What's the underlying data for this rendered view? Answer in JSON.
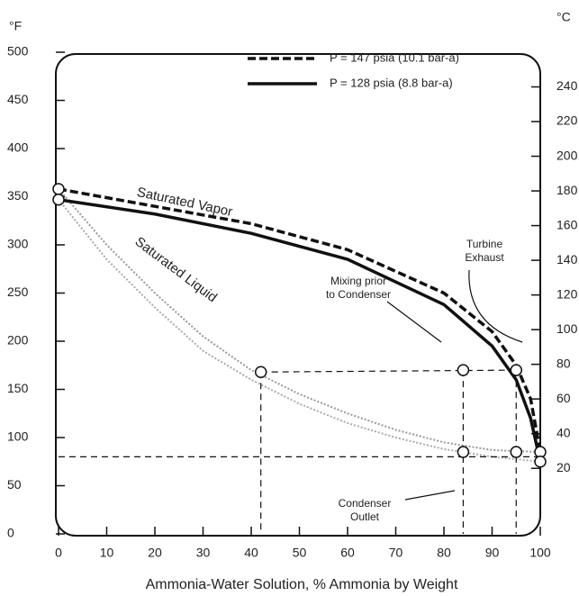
{
  "chart_data": {
    "type": "line",
    "ylabel": "°F",
    "y2label": "°C",
    "xlabel": "Ammonia-Water Solution, % Ammonia by Weight",
    "xlim": [
      0,
      100
    ],
    "xticks": [
      0,
      10,
      20,
      30,
      40,
      50,
      60,
      70,
      80,
      90,
      100
    ],
    "ylim": [
      0,
      500
    ],
    "yticks": [
      0,
      50,
      100,
      150,
      200,
      250,
      300,
      350,
      400,
      450,
      500
    ],
    "y2lim": [
      -17.8,
      260
    ],
    "y2ticks": [
      20,
      40,
      60,
      80,
      100,
      120,
      140,
      160,
      180,
      200,
      220,
      240
    ],
    "series": [
      {
        "name": "P = 147 psia (10.1 bar-a)",
        "color": "#111",
        "dashed": true,
        "x": [
          0,
          20,
          40,
          60,
          80,
          90,
          95,
          98,
          100
        ],
        "values": [
          358,
          340,
          322,
          295,
          250,
          210,
          175,
          140,
          85
        ]
      },
      {
        "name": "P = 128 psia (8.8 bar-a)",
        "color": "#111",
        "dashed": false,
        "x": [
          0,
          20,
          40,
          60,
          80,
          90,
          95,
          98,
          100
        ],
        "values": [
          347,
          332,
          312,
          285,
          238,
          195,
          160,
          120,
          75
        ]
      }
    ],
    "liquid_curves": [
      {
        "color": "#999",
        "x": [
          0,
          10,
          20,
          30,
          40,
          50,
          60,
          70,
          80,
          90,
          100
        ],
        "values": [
          358,
          300,
          250,
          205,
          170,
          145,
          125,
          108,
          95,
          87,
          85
        ]
      },
      {
        "color": "#aaa",
        "x": [
          0,
          10,
          20,
          30,
          40,
          50,
          60,
          70,
          80,
          90,
          100
        ],
        "values": [
          347,
          285,
          235,
          190,
          160,
          135,
          115,
          100,
          88,
          80,
          75
        ]
      }
    ],
    "process_lines": [
      {
        "x": [
          42,
          95
        ],
        "values": [
          168,
          170
        ]
      },
      {
        "x": [
          42,
          42
        ],
        "values": [
          168,
          0
        ]
      },
      {
        "x": [
          84,
          84
        ],
        "values": [
          170,
          0
        ]
      },
      {
        "x": [
          95,
          95
        ],
        "values": [
          170,
          0
        ]
      },
      {
        "x": [
          0,
          100
        ],
        "values": [
          80,
          80
        ]
      }
    ],
    "points": {
      "x": [
        0,
        0,
        42,
        84,
        95,
        84,
        95,
        100,
        100
      ],
      "values": [
        358,
        347,
        168,
        170,
        170,
        85,
        85,
        85,
        75
      ]
    },
    "annotations": [
      [
        "Saturated Vapor"
      ],
      [
        "Saturated Liquid"
      ],
      [
        "Turbine",
        "Exhaust"
      ],
      [
        "Mixing prior",
        "to Condenser"
      ],
      [
        "Condenser",
        "Outlet"
      ]
    ]
  }
}
